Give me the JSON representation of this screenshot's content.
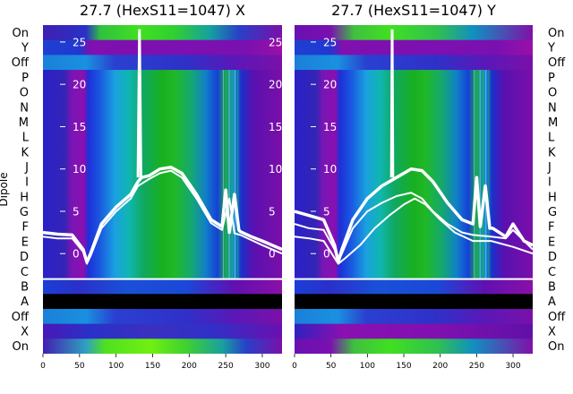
{
  "chart_data": [
    {
      "type": "heatmap",
      "title": "27.7 (HexS11=1047) X",
      "ylabel": "Dipole",
      "x_ticks": [
        0,
        50,
        100,
        150,
        200,
        250,
        300
      ],
      "xlim": [
        0,
        327
      ],
      "row_labels_top_to_bottom": [
        "On",
        "Y",
        "Off",
        "P",
        "O",
        "N",
        "M",
        "L",
        "K",
        "J",
        "I",
        "H",
        "G",
        "F",
        "E",
        "D",
        "C",
        "B",
        "A",
        "Off",
        "X",
        "On"
      ],
      "overlay_y_ticks": [
        25,
        20,
        15,
        10,
        5,
        0
      ],
      "overlay_ylim": [
        -3,
        27
      ],
      "overlay": {
        "type": "line",
        "series": [
          {
            "x": [
              0,
              20,
              40,
              55,
              60,
              65,
              80,
              100,
              120,
              130,
              135,
              145,
              160,
              175,
              190,
              210,
              230,
              245,
              250,
              255,
              262,
              268,
              270,
              285,
              300,
              327
            ],
            "y": [
              2.5,
              2.3,
              2.2,
              0.5,
              -1.0,
              0.0,
              3.5,
              5.5,
              7.0,
              8.5,
              9.0,
              9.2,
              10.0,
              10.2,
              9.5,
              7.0,
              4.0,
              3.2,
              7.5,
              2.5,
              7.0,
              2.8,
              2.6,
              2.0,
              1.5,
              0.5
            ]
          },
          {
            "x": [
              0,
              20,
              40,
              55,
              60,
              65,
              80,
              100,
              120,
              130,
              145,
              160,
              175,
              190,
              210,
              230,
              245,
              255,
              262,
              270,
              300,
              327
            ],
            "y": [
              2.0,
              1.8,
              1.8,
              0.2,
              -1.2,
              -0.3,
              3.0,
              5.0,
              6.5,
              8.0,
              8.8,
              9.5,
              9.8,
              9.0,
              6.5,
              3.6,
              2.8,
              6.5,
              2.4,
              2.2,
              1.0,
              0.0
            ]
          }
        ],
        "spike": {
          "x": [
            130,
            132,
            134
          ],
          "y": [
            9.0,
            26.5,
            9.0
          ]
        }
      }
    },
    {
      "type": "heatmap",
      "title": "27.7 (HexS11=1047) Y",
      "ylabel": "",
      "x_ticks": [
        0,
        50,
        100,
        150,
        200,
        250,
        300
      ],
      "xlim": [
        0,
        327
      ],
      "row_labels_top_to_bottom": [
        "On",
        "Y",
        "Off",
        "P",
        "O",
        "N",
        "M",
        "L",
        "K",
        "J",
        "I",
        "H",
        "G",
        "F",
        "E",
        "D",
        "C",
        "B",
        "A",
        "Off",
        "X",
        "On"
      ],
      "overlay_y_ticks": [
        25,
        20,
        15,
        10,
        5,
        0
      ],
      "overlay_ylim": [
        -3,
        27
      ],
      "overlay": {
        "type": "line",
        "series": [
          {
            "x": [
              0,
              20,
              40,
              55,
              60,
              65,
              80,
              100,
              120,
              140,
              160,
              175,
              190,
              210,
              230,
              245,
              250,
              255,
              262,
              268,
              272,
              290,
              300,
              315,
              327
            ],
            "y": [
              5.0,
              4.5,
              4.0,
              1.0,
              -1.0,
              0.5,
              4.0,
              6.5,
              8.0,
              9.0,
              10.0,
              9.8,
              8.5,
              6.0,
              4.0,
              3.5,
              9.0,
              3.2,
              8.0,
              3.0,
              3.0,
              2.0,
              3.5,
              1.5,
              1.0
            ]
          },
          {
            "x": [
              0,
              20,
              40,
              55,
              60,
              65,
              80,
              100,
              120,
              140,
              160,
              175,
              190,
              210,
              230,
              245,
              270,
              290,
              300,
              327
            ],
            "y": [
              3.5,
              3.0,
              2.8,
              0.5,
              -1.0,
              0.0,
              3.0,
              5.0,
              6.0,
              6.8,
              7.2,
              6.5,
              5.0,
              3.5,
              2.5,
              2.2,
              2.0,
              1.8,
              2.8,
              0.5
            ]
          },
          {
            "x": [
              0,
              20,
              40,
              60,
              70,
              90,
              110,
              130,
              150,
              165,
              180,
              200,
              220,
              245,
              270,
              300,
              327
            ],
            "y": [
              2.0,
              1.8,
              1.5,
              -1.2,
              -0.5,
              1.0,
              3.0,
              4.5,
              5.8,
              6.5,
              5.8,
              4.0,
              2.5,
              1.5,
              1.5,
              0.8,
              0.0
            ]
          }
        ],
        "spike": {
          "x": [
            133,
            134,
            135
          ],
          "y": [
            9.0,
            26.5,
            9.0
          ]
        }
      }
    }
  ]
}
